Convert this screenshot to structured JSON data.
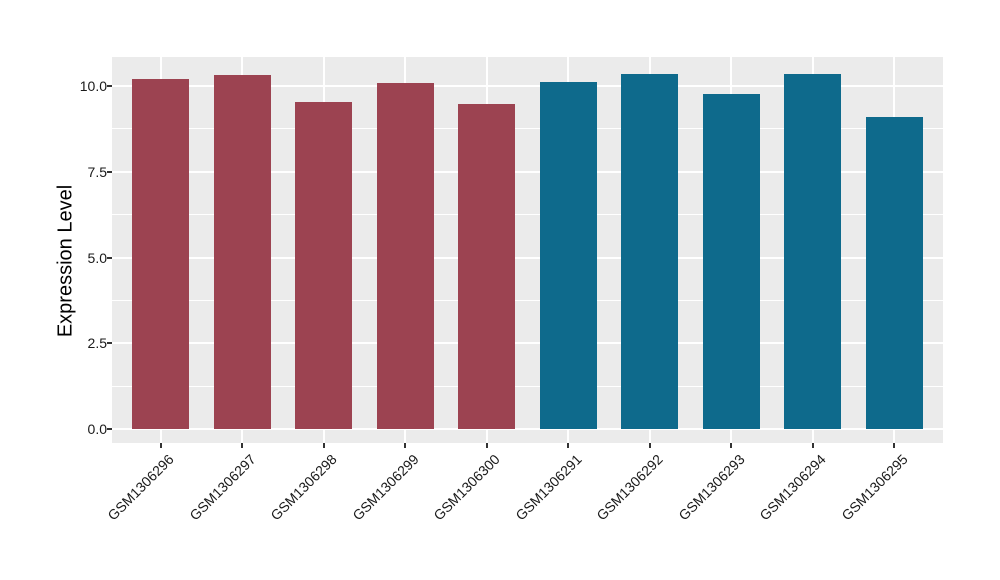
{
  "figure": {
    "background": "#FFFFFF",
    "panel_background": "#EBEBEB",
    "gridline_color": "#FFFFFF",
    "axis_text_color": "#1A1A1A",
    "axis_title_color": "#000000",
    "tick_mark_color": "#333333"
  },
  "chart_data": {
    "type": "bar",
    "title": "",
    "xlabel": "",
    "ylabel": "Expression Level",
    "categories": [
      "GSM1306296",
      "GSM1306297",
      "GSM1306298",
      "GSM1306299",
      "GSM1306300",
      "GSM1306291",
      "GSM1306292",
      "GSM1306293",
      "GSM1306294",
      "GSM1306295"
    ],
    "values": [
      10.2,
      10.32,
      9.52,
      10.1,
      9.47,
      10.13,
      10.35,
      9.76,
      10.34,
      9.1
    ],
    "palette": [
      "#9C4351",
      "#0E6A8C"
    ],
    "bar_color_index": [
      0,
      0,
      0,
      0,
      0,
      1,
      1,
      1,
      1,
      1
    ],
    "ytick_labels": [
      "0.0",
      "2.5",
      "5.0",
      "7.5",
      "10.0"
    ],
    "ytick_values": [
      0,
      2.5,
      5,
      7.5,
      10
    ],
    "yminor_values": [
      1.25,
      3.75,
      6.25,
      8.75
    ],
    "ylim": [
      -0.41,
      10.85
    ],
    "grid": true,
    "legend": false,
    "x_tick_rotation_deg": 45
  }
}
